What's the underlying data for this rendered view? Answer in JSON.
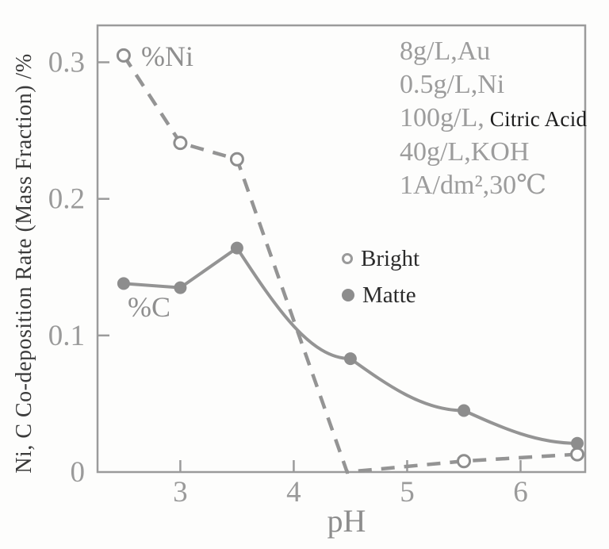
{
  "figure": {
    "y_axis_label": "Ni, C Co-deposition Rate (Mass Fraction) /%",
    "x_axis_label": "pH",
    "series_label_ni": "%Ni",
    "series_label_c": "%C",
    "annotations": {
      "line1": "8g/L,Au",
      "line2": "0.5g/L,Ni",
      "line3_main": "100g/L,",
      "line3_suffix": " Citric Acid",
      "line4": "40g/L,KOH",
      "line5": "1A/dm²,30℃"
    },
    "legend": {
      "bright_label": "Bright",
      "matte_label": "Matte"
    },
    "colors": {
      "curve_gray": "#949494",
      "marker_gray": "#8d8d8d",
      "axis_gray": "#9b9b9b",
      "tick_text_gray": "#9a9a9a",
      "background": "#fdfdfc"
    }
  },
  "chart_data": {
    "type": "line",
    "title": "",
    "xlabel": "pH",
    "ylabel": "Ni, C Co-deposition Rate (Mass Fraction) /%",
    "xlim": [
      2.27,
      6.57
    ],
    "ylim": [
      0,
      0.327
    ],
    "grid": false,
    "legend_position": "middle-right",
    "x_ticks": {
      "values": [
        3,
        4,
        5,
        6
      ],
      "labels": [
        "3",
        "4",
        "5",
        "6"
      ]
    },
    "y_ticks": {
      "values": [
        0,
        0.1,
        0.2,
        0.3
      ],
      "labels": [
        "0",
        "0.1",
        "0.2",
        "0.3"
      ]
    },
    "series": [
      {
        "id": "ni",
        "name": "%Ni",
        "legend": "Bright",
        "line_style": "dashed",
        "marker": "open-circle",
        "smooth_from": null,
        "points": [
          {
            "x": 2.5,
            "y": 0.305,
            "marker": true
          },
          {
            "x": 3.0,
            "y": 0.241,
            "marker": true
          },
          {
            "x": 3.5,
            "y": 0.229,
            "marker": true
          },
          {
            "x": 4.47,
            "y": 0.0,
            "marker": false
          },
          {
            "x": 5.5,
            "y": 0.008,
            "marker": true
          },
          {
            "x": 6.5,
            "y": 0.013,
            "marker": true
          }
        ]
      },
      {
        "id": "c",
        "name": "%C",
        "legend": "Matte",
        "line_style": "solid",
        "marker": "filled-circle",
        "smooth_from": 2,
        "points": [
          {
            "x": 2.5,
            "y": 0.138,
            "marker": true
          },
          {
            "x": 3.0,
            "y": 0.135,
            "marker": true
          },
          {
            "x": 3.5,
            "y": 0.164,
            "marker": true
          },
          {
            "x": 4.5,
            "y": 0.083,
            "marker": true
          },
          {
            "x": 5.5,
            "y": 0.045,
            "marker": true
          },
          {
            "x": 6.5,
            "y": 0.021,
            "marker": true
          }
        ]
      }
    ]
  }
}
